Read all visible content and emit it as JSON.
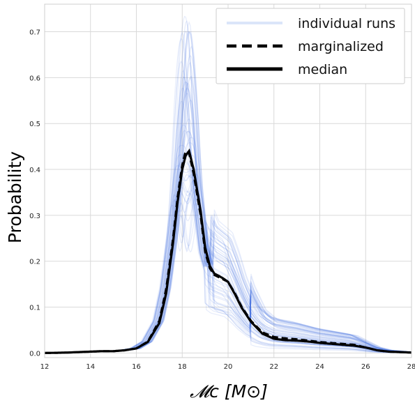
{
  "chart_data": {
    "type": "line",
    "title": "",
    "xlabel": "𝓜c [M⊙]",
    "ylabel": "Probability",
    "xlim": [
      12,
      28
    ],
    "ylim": [
      -0.01,
      0.76
    ],
    "xticks": [
      12,
      14,
      16,
      18,
      20,
      22,
      24,
      26,
      28
    ],
    "yticks": [
      0.0,
      0.1,
      0.2,
      0.3,
      0.4,
      0.5,
      0.6,
      0.7
    ],
    "xtick_labels": [
      "12",
      "14",
      "16",
      "18",
      "20",
      "22",
      "24",
      "26",
      "28"
    ],
    "ytick_labels": [
      "0.0",
      "0.1",
      "0.2",
      "0.3",
      "0.4",
      "0.5",
      "0.6",
      "0.7"
    ],
    "grid": true,
    "legend_position": "top-right",
    "legend": [
      {
        "label": "individual runs",
        "style": "thin-light-blue"
      },
      {
        "label": "marginalized",
        "style": "dashed-black"
      },
      {
        "label": "median",
        "style": "solid-black"
      }
    ],
    "colors": {
      "individual_runs": "#3a6fe0",
      "marginalized": "#000000",
      "median": "#000000",
      "grid": "#d9d9d9"
    },
    "series": [
      {
        "name": "marginalized",
        "x": [
          12,
          13,
          14,
          14.5,
          15,
          15.5,
          16,
          16.5,
          17,
          17.3,
          17.6,
          17.8,
          18.0,
          18.15,
          18.3,
          18.5,
          18.8,
          19.0,
          19.2,
          19.4,
          19.6,
          19.8,
          20.0,
          20.3,
          20.6,
          21.0,
          21.5,
          22.0,
          22.5,
          23.0,
          23.5,
          24.0,
          24.5,
          25.0,
          25.5,
          26.0,
          26.5,
          27.0,
          27.5,
          28.0
        ],
        "y": [
          0.0,
          0.001,
          0.003,
          0.004,
          0.004,
          0.006,
          0.01,
          0.025,
          0.07,
          0.14,
          0.25,
          0.34,
          0.41,
          0.44,
          0.435,
          0.39,
          0.3,
          0.22,
          0.185,
          0.17,
          0.165,
          0.16,
          0.155,
          0.13,
          0.1,
          0.07,
          0.045,
          0.035,
          0.032,
          0.03,
          0.027,
          0.024,
          0.022,
          0.02,
          0.018,
          0.012,
          0.006,
          0.003,
          0.002,
          0.001
        ]
      },
      {
        "name": "median",
        "x": [
          12,
          13,
          14,
          14.5,
          15,
          15.5,
          16,
          16.5,
          17,
          17.3,
          17.6,
          17.8,
          18.0,
          18.15,
          18.3,
          18.5,
          18.8,
          19.0,
          19.2,
          19.4,
          19.6,
          19.8,
          20.0,
          20.3,
          20.6,
          21.0,
          21.5,
          22.0,
          22.5,
          23.0,
          23.5,
          24.0,
          24.5,
          25.0,
          25.5,
          26.0,
          26.5,
          27.0,
          27.5,
          28.0
        ],
        "y": [
          0.0,
          0.001,
          0.003,
          0.004,
          0.004,
          0.006,
          0.01,
          0.024,
          0.065,
          0.13,
          0.24,
          0.33,
          0.4,
          0.43,
          0.44,
          0.4,
          0.31,
          0.23,
          0.19,
          0.173,
          0.168,
          0.162,
          0.155,
          0.128,
          0.098,
          0.068,
          0.042,
          0.031,
          0.028,
          0.027,
          0.025,
          0.022,
          0.02,
          0.018,
          0.016,
          0.012,
          0.006,
          0.003,
          0.002,
          0.001
        ]
      }
    ],
    "individual_runs": {
      "name": "individual runs",
      "count": 60,
      "peak_range": [
        0.22,
        0.74
      ],
      "peak_location_range": [
        17.9,
        18.4
      ],
      "shoulder_range": [
        0.08,
        0.24
      ],
      "tail_range": [
        0.01,
        0.07
      ]
    }
  }
}
